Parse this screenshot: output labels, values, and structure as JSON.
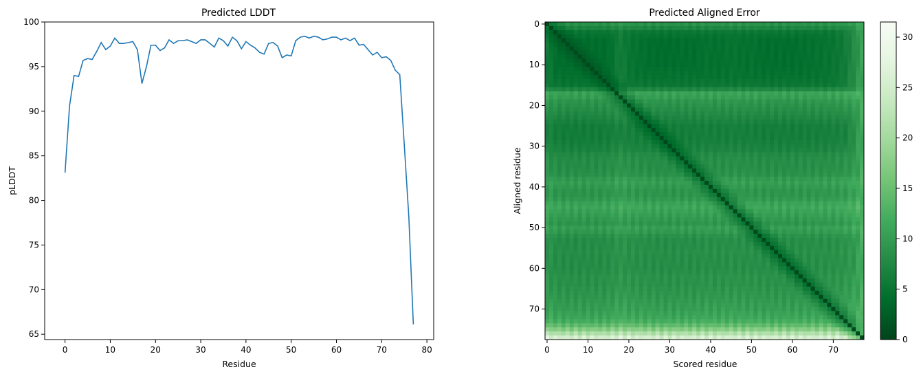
{
  "chart_data": [
    {
      "type": "line",
      "title": "Predicted LDDT",
      "xlabel": "Residue",
      "ylabel": "pLDDT",
      "xlim": [
        -4.5,
        81.5
      ],
      "ylim": [
        64.4,
        100
      ],
      "xticks": [
        0,
        10,
        20,
        30,
        40,
        50,
        60,
        70,
        80
      ],
      "yticks": [
        65,
        70,
        75,
        80,
        85,
        90,
        95,
        100
      ],
      "grid": false,
      "line_color": "#1f77b4",
      "series": [
        {
          "x": [
            0,
            1,
            2,
            3,
            4,
            5,
            6,
            7,
            8,
            9,
            10,
            11,
            12,
            13,
            14,
            15,
            16,
            17,
            18,
            19,
            20,
            21,
            22,
            23,
            24,
            25,
            26,
            27,
            28,
            29,
            30,
            31,
            32,
            33,
            34,
            35,
            36,
            37,
            38,
            39,
            40,
            41,
            42,
            43,
            44,
            45,
            46,
            47,
            48,
            49,
            50,
            51,
            52,
            53,
            54,
            55,
            56,
            57,
            58,
            59,
            60,
            61,
            62,
            63,
            64,
            65,
            66,
            67,
            68,
            69,
            70,
            71,
            72,
            73,
            74,
            75,
            76,
            77
          ],
          "values": [
            83.1,
            90.6,
            94.0,
            93.9,
            95.7,
            95.9,
            95.8,
            96.7,
            97.7,
            96.9,
            97.3,
            98.2,
            97.6,
            97.6,
            97.7,
            97.8,
            96.9,
            93.1,
            95.0,
            97.4,
            97.4,
            96.8,
            97.1,
            98.0,
            97.6,
            97.9,
            97.9,
            98.0,
            97.8,
            97.6,
            98.0,
            98.0,
            97.6,
            97.2,
            98.2,
            97.9,
            97.3,
            98.3,
            97.9,
            97.0,
            97.8,
            97.4,
            97.1,
            96.6,
            96.4,
            97.6,
            97.7,
            97.3,
            96.0,
            96.3,
            96.2,
            97.9,
            98.3,
            98.4,
            98.2,
            98.4,
            98.3,
            98.0,
            98.1,
            98.3,
            98.3,
            98.0,
            98.2,
            97.9,
            98.2,
            97.4,
            97.5,
            96.9,
            96.3,
            96.6,
            96.0,
            96.1,
            95.7,
            94.6,
            94.1,
            86.2,
            78.2,
            66.1
          ]
        }
      ]
    },
    {
      "type": "heatmap",
      "title": "Predicted Aligned Error",
      "xlabel": "Scored residue",
      "ylabel": "Aligned residue",
      "n": 78,
      "xticks": [
        0,
        10,
        20,
        30,
        40,
        50,
        60,
        70
      ],
      "yticks": [
        0,
        10,
        20,
        30,
        40,
        50,
        60,
        70
      ],
      "colormap": "Greens_r",
      "colorbar": {
        "min": 0,
        "max": 31.5,
        "ticks": [
          0,
          5,
          10,
          15,
          20,
          25,
          30
        ]
      },
      "colormap_stops": [
        "#00441b",
        "#006d2c",
        "#238b45",
        "#41ab5d",
        "#74c476",
        "#a1d99b",
        "#c7e9c0",
        "#e5f5e0",
        "#f7fcf5"
      ],
      "row_error_profile": [
        7.5,
        6.0,
        4.0,
        3.5,
        3.0,
        3.0,
        3.0,
        3.0,
        3.0,
        3.0,
        3.0,
        3.2,
        3.4,
        3.5,
        3.8,
        4.0,
        6.0,
        9.5,
        9.0,
        8.0,
        7.5,
        7.0,
        6.5,
        6.0,
        5.5,
        5.0,
        5.0,
        5.0,
        5.0,
        5.2,
        5.5,
        5.8,
        6.5,
        6.8,
        7.0,
        7.0,
        7.2,
        7.5,
        8.5,
        9.0,
        8.5,
        8.0,
        8.0,
        8.5,
        9.5,
        10.0,
        9.5,
        9.0,
        8.5,
        8.0,
        9.0,
        8.5,
        7.5,
        7.0,
        7.0,
        7.0,
        7.2,
        7.0,
        7.0,
        7.0,
        7.0,
        7.2,
        7.5,
        7.5,
        7.5,
        7.8,
        8.0,
        8.2,
        8.5,
        8.8,
        9.0,
        9.5,
        10.0,
        11.0,
        13.0,
        16.0,
        20.0,
        24.0
      ],
      "col_error_profile": [
        5.0,
        4.5,
        3.5,
        3.0,
        2.8,
        2.8,
        2.8,
        2.8,
        2.8,
        2.8,
        2.8,
        3.0,
        3.0,
        3.0,
        3.2,
        3.5,
        4.0,
        5.0,
        5.5,
        5.0,
        4.5,
        4.2,
        4.0,
        3.8,
        3.6,
        3.5,
        3.4,
        3.3,
        3.2,
        3.2,
        3.2,
        3.3,
        3.4,
        3.5,
        3.5,
        3.5,
        3.5,
        3.6,
        3.8,
        4.0,
        3.9,
        3.8,
        3.8,
        3.9,
        4.0,
        4.2,
        4.1,
        4.0,
        3.9,
        3.8,
        4.0,
        3.8,
        3.6,
        3.5,
        3.5,
        3.5,
        3.5,
        3.5,
        3.5,
        3.5,
        3.5,
        3.6,
        3.7,
        3.8,
        3.8,
        3.9,
        4.0,
        4.1,
        4.2,
        4.3,
        4.5,
        4.8,
        5.0,
        5.5,
        6.5,
        7.5,
        9.0,
        10.5
      ]
    }
  ]
}
